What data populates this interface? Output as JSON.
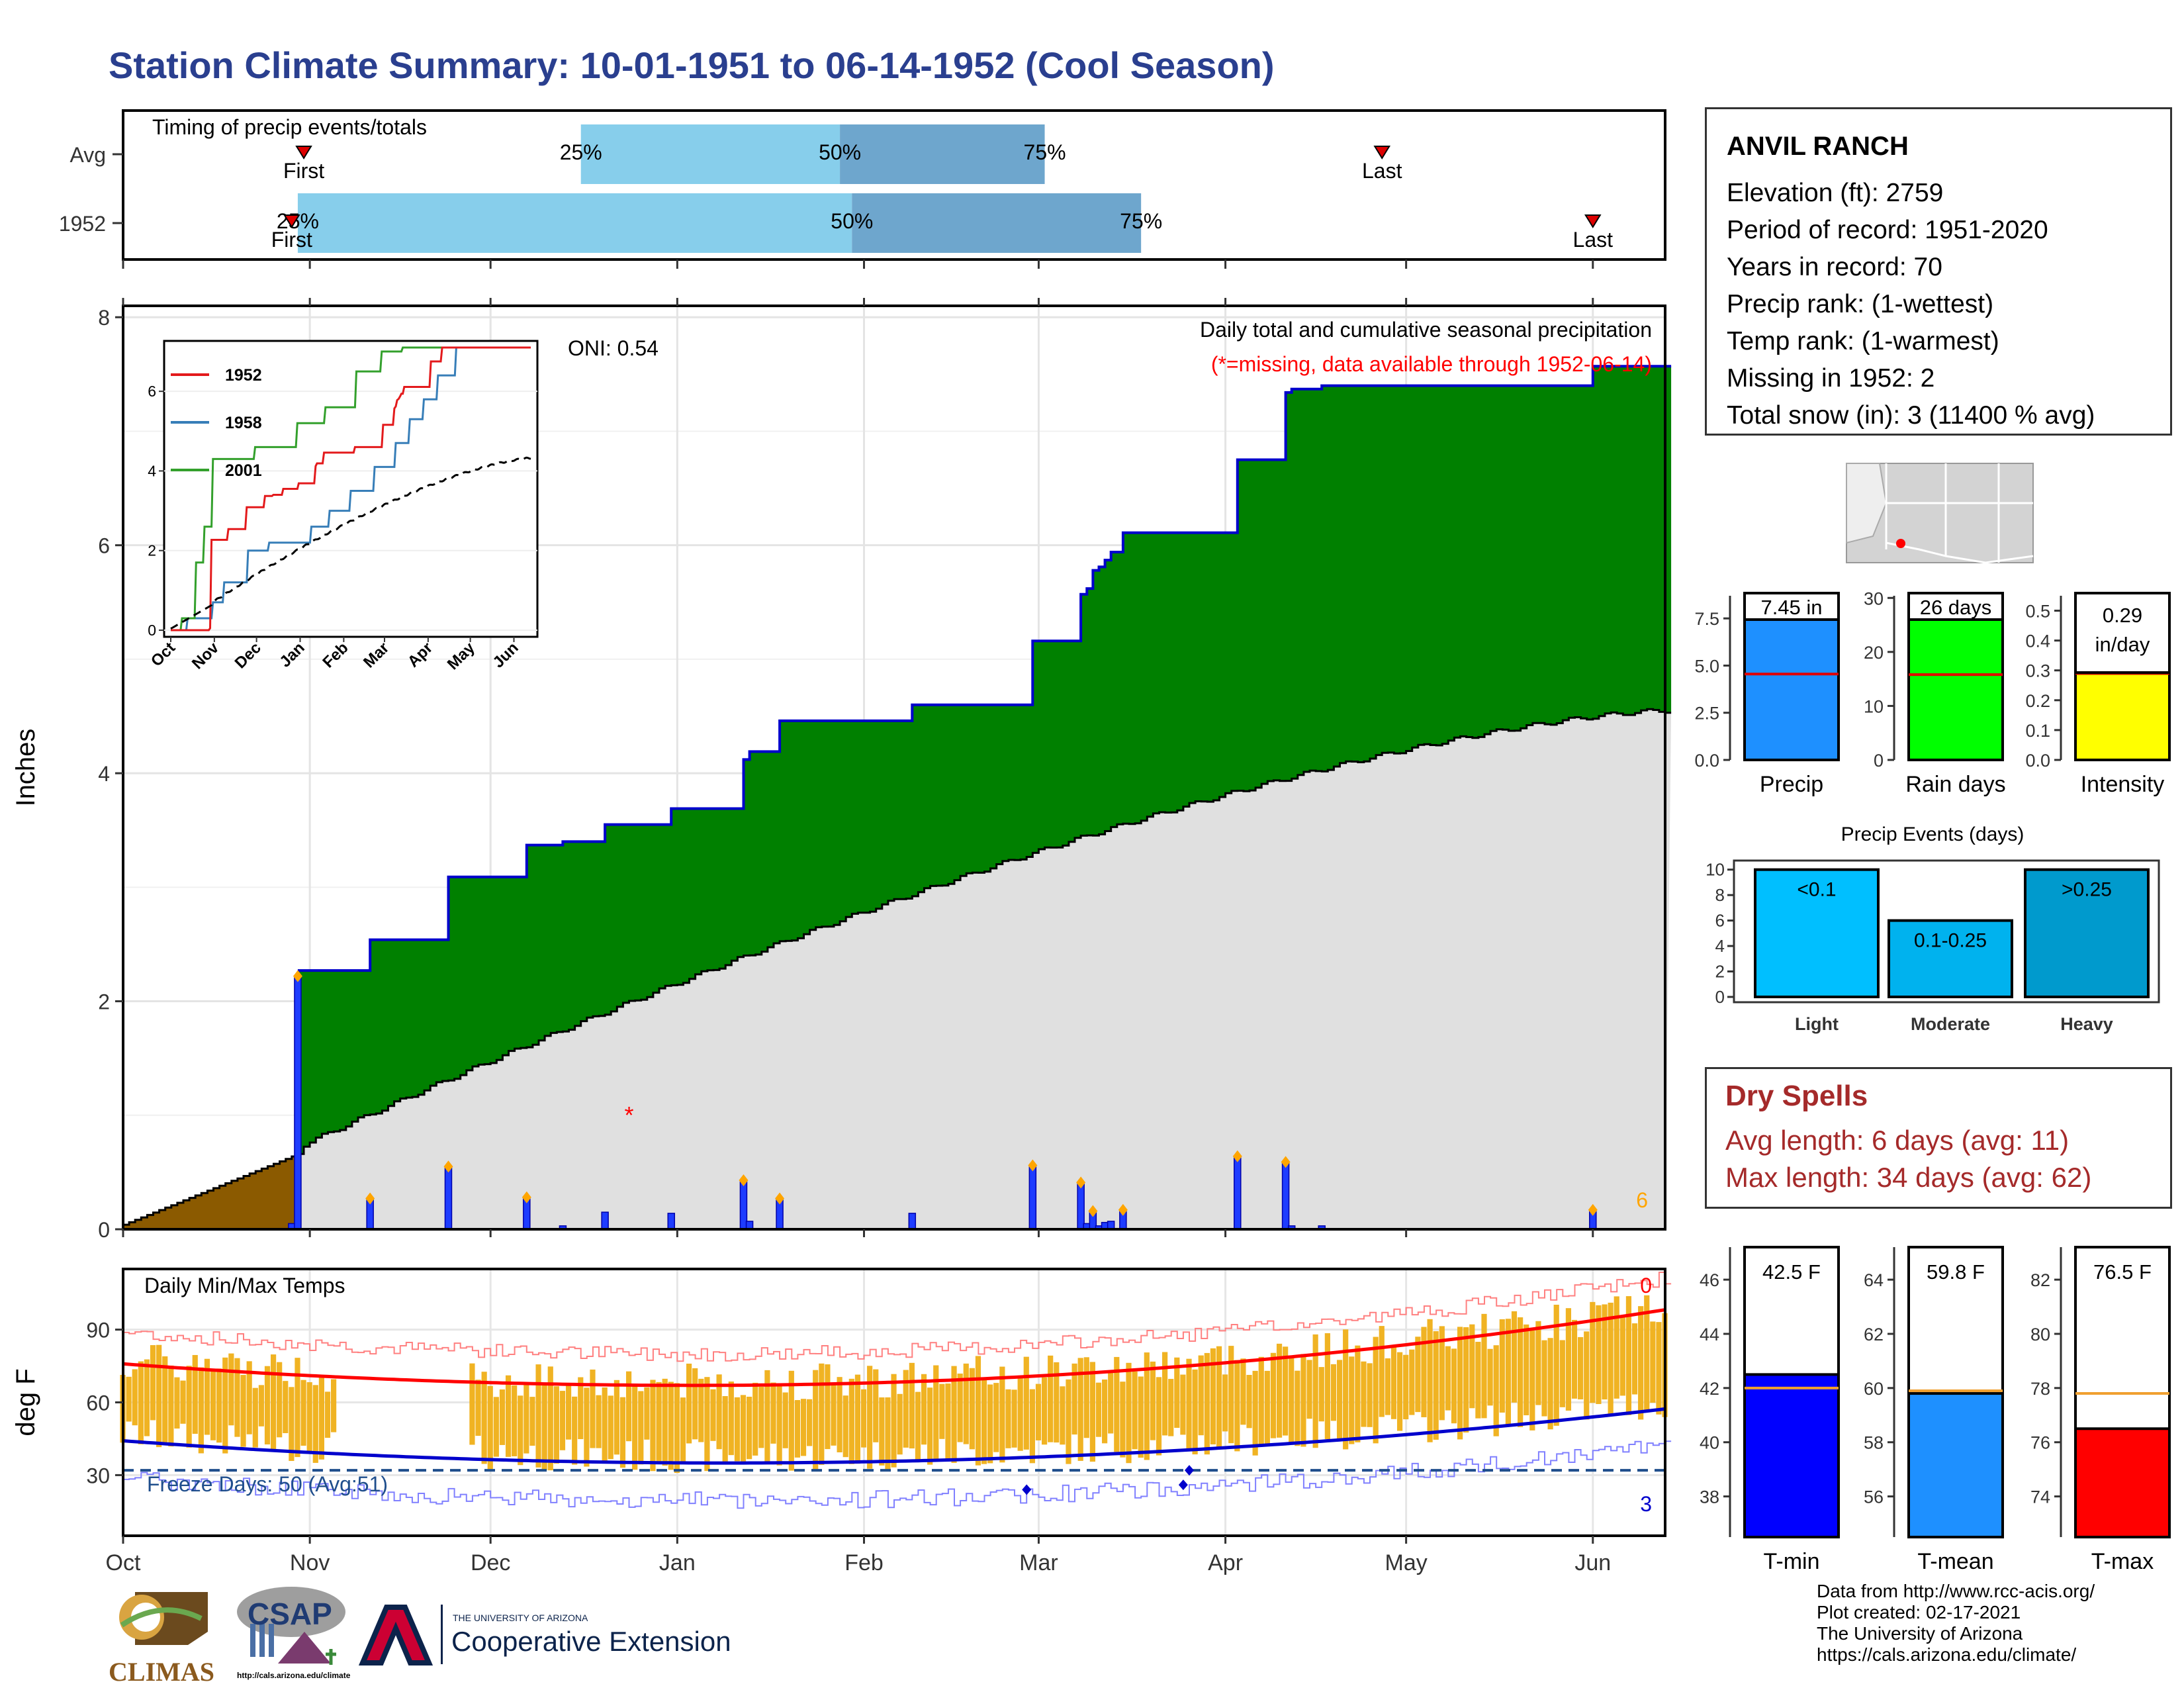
{
  "title": "Station Climate Summary: 10-01-1951 to 06-14-1952 (Cool Season)",
  "timing": {
    "title": "Timing of precip events/totals",
    "rows": [
      {
        "label": "Avg",
        "first": "1951-10-31",
        "p25": "1951-12-16",
        "p50": "1952-01-28",
        "p75": "1952-03-02",
        "last": "1952-04-27"
      },
      {
        "label": "1952",
        "first": "1951-10-29",
        "p25": "1951-10-30",
        "p50": "1952-01-30",
        "p75": "1952-03-18",
        "last": "1952-06-01"
      }
    ],
    "labels": {
      "first": "First",
      "last": "Last",
      "p25": "25%",
      "p50": "50%",
      "p75": "75%"
    },
    "colors": {
      "light": "#87ceeb",
      "dark": "#6ea6cd",
      "marker": "#dd0000"
    }
  },
  "main_plot": {
    "ylabel": "Inches",
    "oni": "ONI: 0.54",
    "desc": "Daily total and cumulative seasonal precipitation",
    "missing_note": "(*=missing, data available through 1952-06-14)",
    "count_label": "6",
    "ylim": [
      0,
      8.1
    ],
    "yticks": [
      "0",
      "2",
      "4",
      "6",
      "8"
    ],
    "colors": {
      "above_avg": "#008000",
      "avg_fill": "#e0e0e0",
      "pre_season": "#8b5a00",
      "bars": "#1e3cff",
      "cum_line": "#0000cc",
      "avg_line": "#000000"
    }
  },
  "inset": {
    "series": [
      {
        "name": "1952",
        "color": "#e31a1c"
      },
      {
        "name": "1958",
        "color": "#377eb8"
      },
      {
        "name": "2001",
        "color": "#33a02c"
      }
    ],
    "xticks": [
      "Oct",
      "Nov",
      "Dec",
      "Jan",
      "Feb",
      "Mar",
      "Apr",
      "May",
      "Jun"
    ],
    "yticks": [
      "0",
      "2",
      "4",
      "6"
    ]
  },
  "temp_plot": {
    "title": "Daily Min/Max Temps",
    "ylabel": "deg F",
    "yticks": [
      "30",
      "60",
      "90"
    ],
    "freeze": "Freeze Days: 50 (Avg:51)",
    "count_top": "0",
    "count_bottom": "3"
  },
  "months": [
    "Oct",
    "Nov",
    "Dec",
    "Jan",
    "Feb",
    "Mar",
    "Apr",
    "May",
    "Jun"
  ],
  "station": {
    "name": "ANVIL RANCH",
    "lines": [
      "Elevation (ft): 2759",
      "Period of record: 1951-2020",
      "Years in record: 70",
      "Precip rank:  (1-wettest)",
      "Temp rank:  (1-warmest)",
      "Missing in 1952: 2",
      "Total snow (in): 3 (11400 % avg)"
    ]
  },
  "stats": [
    {
      "label": "Precip",
      "value_label": "7.45 in",
      "value": 7.45,
      "avg": 4.55,
      "ymax": 8.7,
      "ticks": [
        "0.0",
        "2.5",
        "5.0",
        "7.5"
      ],
      "tickvals": [
        0,
        2.5,
        5,
        7.5
      ],
      "color": "#1e90ff"
    },
    {
      "label": "Rain days",
      "value_label": "26 days",
      "value": 26,
      "avg": 15.8,
      "ymax": 30.4,
      "ticks": [
        "0",
        "10",
        "20",
        "30"
      ],
      "tickvals": [
        0,
        10,
        20,
        30
      ],
      "color": "#00ff00"
    },
    {
      "label": "Intensity",
      "value_label": "0.29\nin/day",
      "value": 0.29,
      "avg": 0.29,
      "ymax": 0.55,
      "ticks": [
        "0.0",
        "0.1",
        "0.2",
        "0.3",
        "0.4",
        "0.5"
      ],
      "tickvals": [
        0,
        0.1,
        0.2,
        0.3,
        0.4,
        0.5
      ],
      "color": "#ffff00"
    }
  ],
  "events": {
    "title": "Precip Events (days)",
    "yticks": [
      "0",
      "2",
      "4",
      "6",
      "8",
      "10"
    ],
    "bars": [
      {
        "category": "Light",
        "label": "<0.1",
        "value": 10,
        "color": "#00bfff"
      },
      {
        "category": "Moderate",
        "label": "0.1-0.25",
        "value": 6,
        "color": "#00b2ee"
      },
      {
        "category": "Heavy",
        "label": ">0.25",
        "value": 10,
        "color": "#009acd"
      }
    ]
  },
  "dry_spells": {
    "title": "Dry Spells",
    "avg": "Avg length: 6 days (avg: 11)",
    "max": "Max length: 34 days (avg: 62)"
  },
  "temps": [
    {
      "label": "T-min",
      "value_label": "42.5 F",
      "value": 42.5,
      "avg": 42.0,
      "ymin": 36.5,
      "ymax": 47.2,
      "ticks": [
        "38",
        "40",
        "42",
        "44",
        "46"
      ],
      "tickvals": [
        38,
        40,
        42,
        44,
        46
      ],
      "color": "#0000ff"
    },
    {
      "label": "T-mean",
      "value_label": "59.8 F",
      "value": 59.8,
      "avg": 59.9,
      "ymin": 54.5,
      "ymax": 65.2,
      "ticks": [
        "56",
        "58",
        "60",
        "62",
        "64"
      ],
      "tickvals": [
        56,
        58,
        60,
        62,
        64
      ],
      "color": "#1e90ff"
    },
    {
      "label": "T-max",
      "value_label": "76.5 F",
      "value": 76.5,
      "avg": 77.8,
      "ymin": 72.5,
      "ymax": 83.2,
      "ticks": [
        "74",
        "76",
        "78",
        "80",
        "82"
      ],
      "tickvals": [
        74,
        76,
        78,
        80,
        82
      ],
      "color": "#ff0000"
    }
  ],
  "credits": [
    "Data from http://www.rcc-acis.org/",
    "Plot created: 02-17-2021",
    "The University of Arizona",
    "https://cals.arizona.edu/climate/"
  ],
  "logos": {
    "climas": "CLIMAS",
    "csap": "CSAP",
    "ua_small": "THE UNIVERSITY OF ARIZONA",
    "ua_big": "Cooperative Extension",
    "csap_url": "http://cals.arizona.edu/climate"
  }
}
